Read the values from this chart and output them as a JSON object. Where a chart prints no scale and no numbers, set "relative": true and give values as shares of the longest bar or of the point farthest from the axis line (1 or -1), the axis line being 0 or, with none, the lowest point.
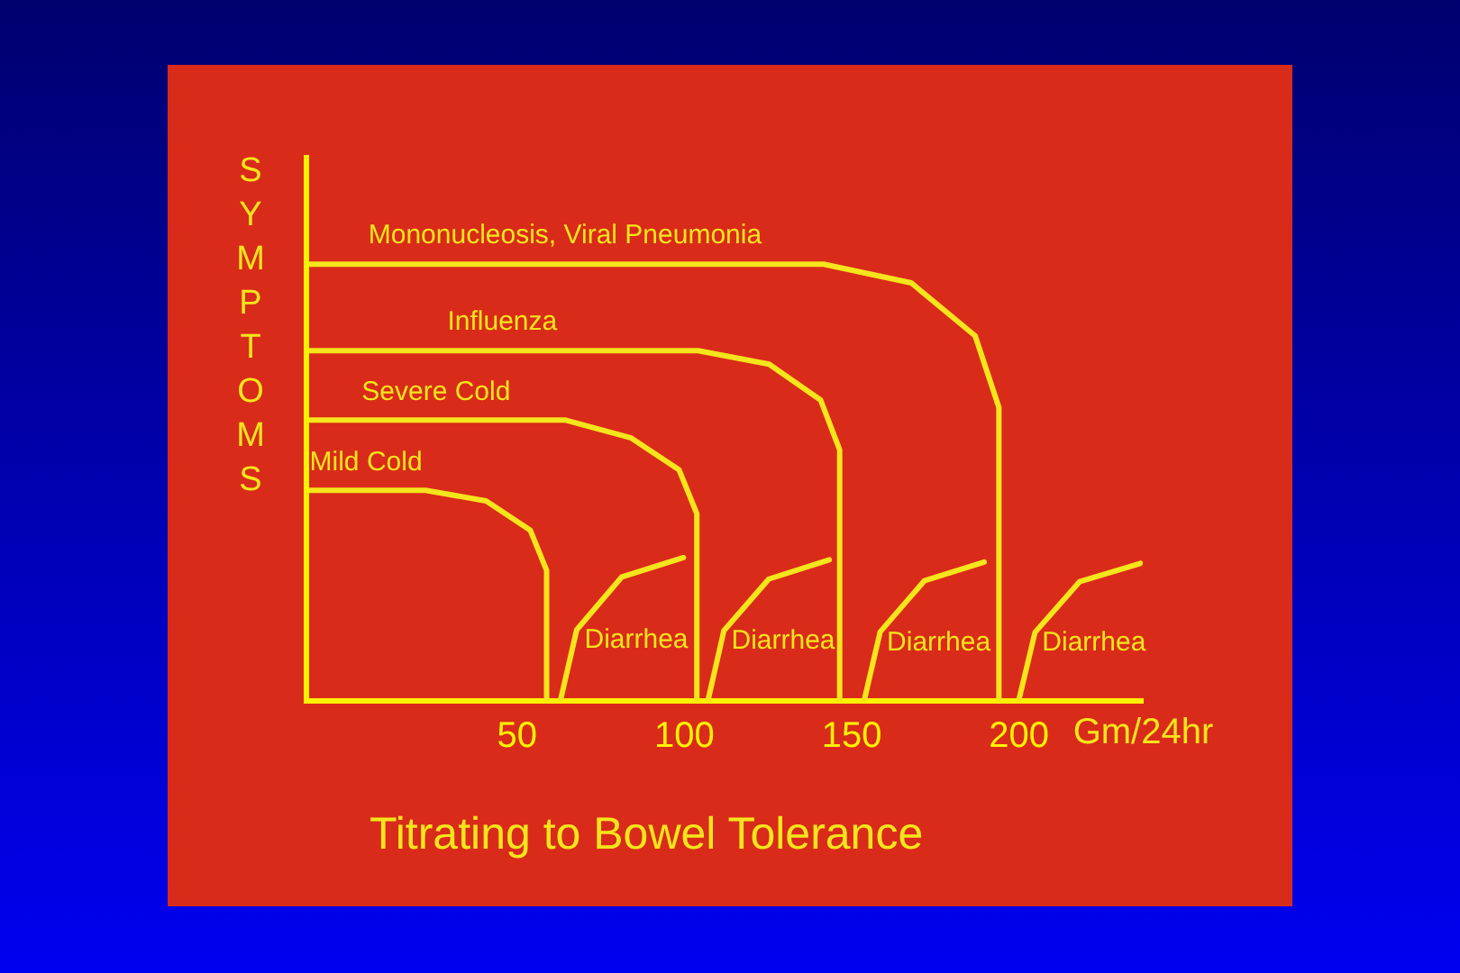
{
  "chart_data": {
    "type": "line",
    "title": "Titrating to Bowel Tolerance",
    "xlabel": "Gm/24hr",
    "ylabel": "SYMPTOMS",
    "relative": true,
    "xlim": [
      -13,
      237
    ],
    "xticks": [
      50,
      100,
      150,
      200
    ],
    "grid": false,
    "legend": false,
    "marker": "none",
    "line_style": "solid",
    "series": [
      {
        "name": "Mild Cold",
        "color": "#f4e51c",
        "x": [
          -13,
          22.6,
          40.7,
          53.9,
          58.8,
          58.8
        ],
        "values": [
          0.482,
          0.482,
          0.458,
          0.391,
          0.299,
          0
        ]
      },
      {
        "name": "Severe Cold",
        "color": "#f4e51c",
        "x": [
          -13,
          64.5,
          84.1,
          98.4,
          103.7,
          103.7
        ],
        "values": [
          0.643,
          0.643,
          0.602,
          0.529,
          0.429,
          0
        ]
      },
      {
        "name": "Influenza",
        "color": "#f4e51c",
        "x": [
          -13,
          104.1,
          125.3,
          140.7,
          146.4,
          146.4
        ],
        "values": [
          0.802,
          0.802,
          0.771,
          0.689,
          0.575,
          0
        ]
      },
      {
        "name": "Mononucleosis, Viral Pneumonia",
        "color": "#f4e51c",
        "x": [
          -13,
          141.6,
          167.8,
          186.9,
          194,
          194
        ],
        "values": [
          1,
          1,
          0.957,
          0.836,
          0.672,
          0
        ]
      },
      {
        "name": "Diarrhea",
        "color": "#f4e51c",
        "x": [
          62.9,
          67.8,
          81.3,
          99.7
        ],
        "values": [
          0,
          0.163,
          0.284,
          0.328
        ]
      },
      {
        "name": "Diarrhea",
        "color": "#f4e51c",
        "x": [
          107,
          111.8,
          125.2,
          143.3
        ],
        "values": [
          0,
          0.161,
          0.279,
          0.323
        ]
      },
      {
        "name": "Diarrhea",
        "color": "#f4e51c",
        "x": [
          153.7,
          158.5,
          171.7,
          189.6
        ],
        "values": [
          0,
          0.158,
          0.275,
          0.318
        ]
      },
      {
        "name": "Diarrhea",
        "color": "#f4e51c",
        "x": [
          199.9,
          204.8,
          218.1,
          236.3
        ],
        "values": [
          0,
          0.157,
          0.273,
          0.315
        ]
      }
    ]
  }
}
